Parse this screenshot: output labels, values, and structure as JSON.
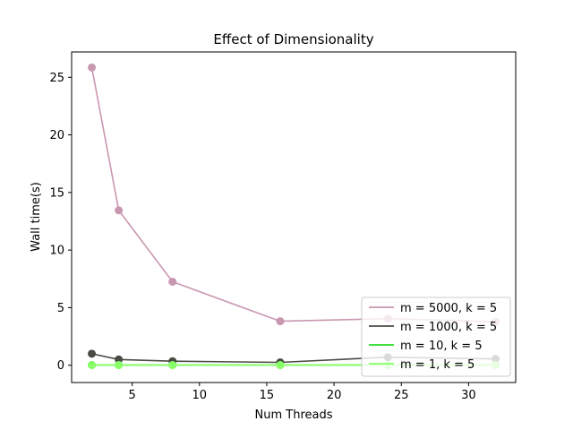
{
  "chart_data": {
    "type": "line",
    "title": "Effect of Dimensionality",
    "xlabel": "Num Threads",
    "ylabel": "Wall time(s)",
    "xlim": [
      0.5,
      33.5
    ],
    "ylim": [
      -1.5,
      27.2
    ],
    "xticks": [
      5,
      10,
      15,
      20,
      25,
      30
    ],
    "yticks": [
      0,
      5,
      10,
      15,
      20,
      25
    ],
    "grid": false,
    "legend_position": "lower-right",
    "x": [
      2,
      4,
      8,
      16,
      24,
      32
    ],
    "series": [
      {
        "name": "m = 5000, k = 5",
        "color": "#c897b0",
        "values": [
          25.85,
          13.45,
          7.25,
          3.82,
          4.05,
          3.78
        ]
      },
      {
        "name": "m = 1000, k = 5",
        "color": "#474b43",
        "values": [
          1.0,
          0.5,
          0.35,
          0.25,
          0.7,
          0.55
        ]
      },
      {
        "name": "m = 10, k = 5",
        "color": "#22dd22",
        "values": [
          0.02,
          0.02,
          0.02,
          0.02,
          0.02,
          0.02
        ]
      },
      {
        "name": "m = 1, k = 5",
        "color": "#88ff66",
        "values": [
          0.01,
          0.01,
          0.01,
          0.01,
          0.01,
          0.01
        ]
      }
    ]
  }
}
